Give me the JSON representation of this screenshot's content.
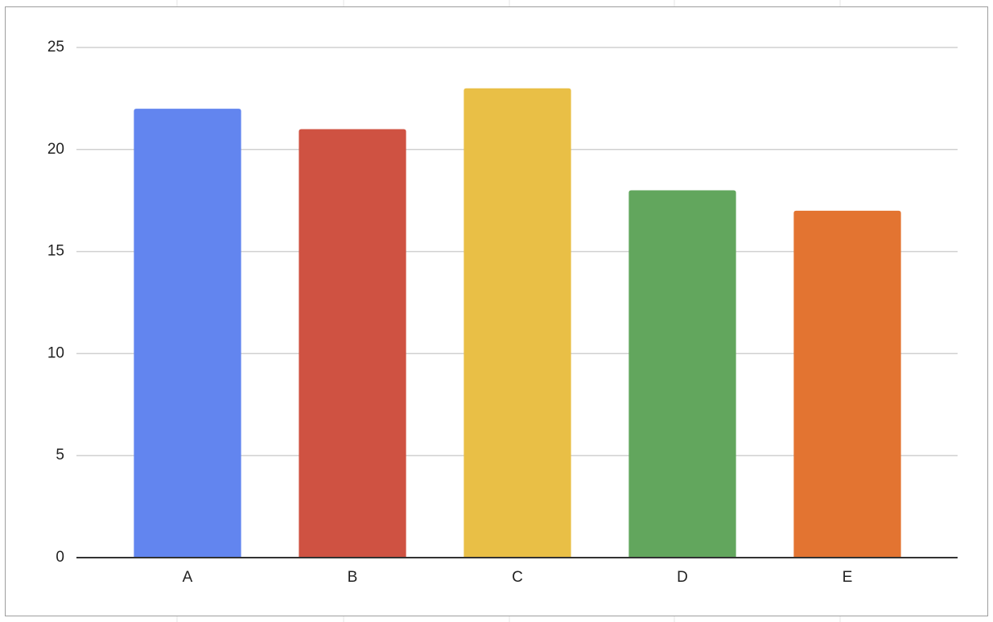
{
  "chart_data": {
    "type": "bar",
    "categories": [
      "A",
      "B",
      "C",
      "D",
      "E"
    ],
    "values": [
      22,
      21,
      23,
      18,
      17
    ],
    "colors": [
      "#6285ef",
      "#cf5242",
      "#e9bf46",
      "#62a65d",
      "#e37431"
    ],
    "ylim": [
      0,
      25
    ],
    "yticks": [
      0,
      5,
      10,
      15,
      20,
      25
    ],
    "grid": true
  }
}
